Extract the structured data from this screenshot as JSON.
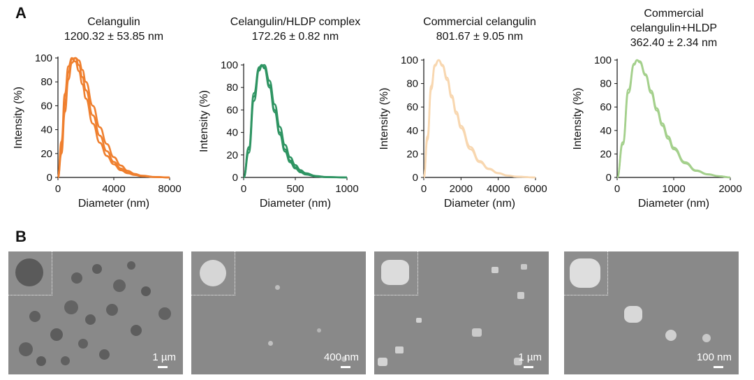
{
  "figure": {
    "panel_a_label": "A",
    "panel_b_label": "B"
  },
  "colors": {
    "celangulin": "#ef7f2e",
    "complex": "#2e9462",
    "commercial": "#f8d7b0",
    "commercial_hldp": "#a4d08c"
  },
  "chart_data": [
    {
      "type": "line",
      "title_lines": [
        "Celangulin",
        "1200.32 ± 53.85 nm"
      ],
      "xlabel": "Diameter (nm)",
      "ylabel": "Intensity (%)",
      "xlim": [
        0,
        8000
      ],
      "ylim": [
        0,
        100
      ],
      "xticks": [
        0,
        4000,
        8000
      ],
      "yticks": [
        0,
        20,
        40,
        60,
        80,
        100
      ],
      "grid": false,
      "color": "#ef7f2e",
      "series": [
        {
          "x": [
            0,
            250,
            500,
            750,
            1000,
            1250,
            1500,
            1750,
            2000,
            2500,
            3000,
            3500,
            4000,
            4500,
            5000,
            5500,
            6000,
            7000,
            8000
          ],
          "y": [
            0,
            30,
            70,
            93,
            100,
            97,
            89,
            78,
            66,
            45,
            29,
            18,
            11,
            6,
            3.5,
            2,
            1,
            0.3,
            0
          ]
        },
        {
          "x": [
            0,
            250,
            500,
            750,
            1000,
            1250,
            1500,
            1750,
            2000,
            2500,
            3000,
            3500,
            4000,
            4500,
            5000,
            5500,
            6000,
            7000,
            8000
          ],
          "y": [
            0,
            25,
            62,
            88,
            99,
            100,
            94,
            84,
            73,
            52,
            35,
            22,
            13,
            7.5,
            4,
            2.2,
            1.2,
            0.3,
            0
          ]
        },
        {
          "x": [
            0,
            250,
            500,
            750,
            1000,
            1250,
            1500,
            1750,
            2000,
            2500,
            3000,
            3500,
            4000,
            4500,
            5000,
            5500,
            6000,
            7000,
            8000
          ],
          "y": [
            0,
            20,
            55,
            82,
            96,
            100,
            98,
            90,
            80,
            60,
            42,
            28,
            17,
            10,
            5.5,
            3,
            1.5,
            0.4,
            0
          ]
        }
      ]
    },
    {
      "type": "line",
      "title_lines": [
        "Celangulin/HLDP complex",
        "172.26 ± 0.82 nm"
      ],
      "xlabel": "Diameter (nm)",
      "ylabel": "Intensity (%)",
      "xlim": [
        0,
        1000
      ],
      "ylim": [
        0,
        100
      ],
      "xticks": [
        0,
        500,
        1000
      ],
      "yticks": [
        0,
        20,
        40,
        60,
        80,
        100
      ],
      "grid": false,
      "color": "#2e9462",
      "series": [
        {
          "x": [
            0,
            50,
            100,
            150,
            175,
            200,
            250,
            300,
            350,
            400,
            450,
            500,
            550,
            600,
            700,
            800,
            1000
          ],
          "y": [
            0,
            25,
            72,
            97,
            100,
            98,
            82,
            60,
            40,
            25,
            15,
            9,
            5,
            3,
            1,
            0.3,
            0
          ]
        },
        {
          "x": [
            0,
            50,
            100,
            150,
            175,
            200,
            250,
            300,
            350,
            400,
            450,
            500,
            550,
            600,
            700,
            800,
            1000
          ],
          "y": [
            0,
            22,
            68,
            95,
            99,
            100,
            86,
            65,
            45,
            29,
            18,
            11,
            6.5,
            3.8,
            1.3,
            0.4,
            0
          ]
        },
        {
          "x": [
            0,
            50,
            100,
            150,
            175,
            200,
            250,
            300,
            350,
            400,
            450,
            500,
            550,
            600,
            700,
            800,
            1000
          ],
          "y": [
            0,
            27,
            75,
            98,
            100,
            97,
            80,
            58,
            38,
            23,
            13.5,
            8,
            4.5,
            2.6,
            0.9,
            0.2,
            0
          ]
        }
      ]
    },
    {
      "type": "line",
      "title_lines": [
        "Commercial celangulin",
        "801.67 ± 9.05 nm"
      ],
      "xlabel": "Diameter (nm)",
      "ylabel": "Intensity (%)",
      "xlim": [
        0,
        6000
      ],
      "ylim": [
        0,
        100
      ],
      "xticks": [
        0,
        2000,
        4000,
        6000
      ],
      "yticks": [
        0,
        20,
        40,
        60,
        80,
        100
      ],
      "grid": false,
      "color": "#f8d7b0",
      "series": [
        {
          "x": [
            0,
            200,
            400,
            600,
            800,
            1000,
            1250,
            1500,
            1750,
            2000,
            2500,
            3000,
            3500,
            4000,
            4500,
            5000,
            6000
          ],
          "y": [
            0,
            35,
            78,
            96,
            100,
            95,
            83,
            68,
            54,
            42,
            24,
            13,
            7,
            3.5,
            1.5,
            0.6,
            0
          ]
        },
        {
          "x": [
            0,
            200,
            400,
            600,
            800,
            1000,
            1250,
            1500,
            1750,
            2000,
            2500,
            3000,
            3500,
            4000,
            4500,
            5000,
            6000
          ],
          "y": [
            0,
            32,
            75,
            95,
            100,
            96,
            85,
            70,
            56,
            44,
            26,
            14,
            7.5,
            3.8,
            1.7,
            0.7,
            0
          ]
        }
      ]
    },
    {
      "type": "line",
      "title_lines": [
        "Commercial",
        "celangulin+HLDP",
        "362.40 ± 2.34 nm"
      ],
      "xlabel": "Diameter (nm)",
      "ylabel": "Intensity (%)",
      "xlim": [
        0,
        2000
      ],
      "ylim": [
        0,
        100
      ],
      "xticks": [
        0,
        1000,
        2000
      ],
      "yticks": [
        0,
        20,
        40,
        60,
        80,
        100
      ],
      "grid": false,
      "color": "#a4d08c",
      "series": [
        {
          "x": [
            0,
            100,
            200,
            300,
            350,
            400,
            500,
            600,
            700,
            800,
            900,
            1000,
            1200,
            1400,
            1600,
            1800,
            2000
          ],
          "y": [
            0,
            30,
            75,
            97,
            100,
            98,
            87,
            72,
            57,
            44,
            33,
            24,
            12,
            5.5,
            2.5,
            1,
            0
          ]
        },
        {
          "x": [
            0,
            100,
            200,
            300,
            350,
            400,
            500,
            600,
            700,
            800,
            900,
            1000,
            1200,
            1400,
            1600,
            1800,
            2000
          ],
          "y": [
            0,
            28,
            72,
            96,
            100,
            99,
            88,
            74,
            59,
            46,
            35,
            25.5,
            13,
            6,
            2.8,
            1.1,
            0
          ]
        }
      ]
    }
  ],
  "sem_images": [
    {
      "scale_bar": "1 µm"
    },
    {
      "scale_bar": "400 nm"
    },
    {
      "scale_bar": "1 µm"
    },
    {
      "scale_bar": "100 nm"
    }
  ]
}
